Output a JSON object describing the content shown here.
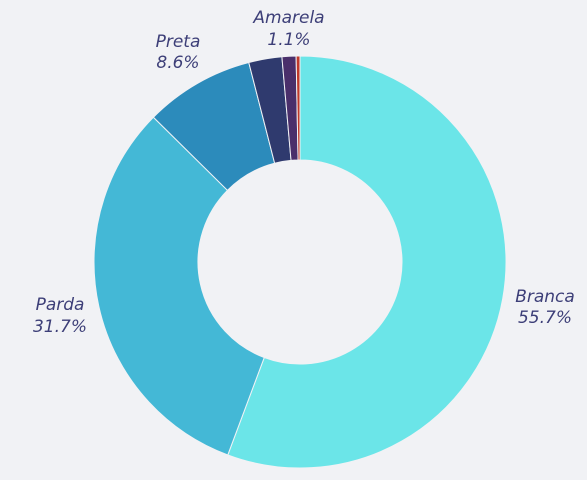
{
  "chart_data": {
    "type": "pie",
    "variant": "donut",
    "slices": [
      {
        "label": "Branca",
        "value": 55.7,
        "display": "55.7%",
        "color": "#6be5e8"
      },
      {
        "label": "Parda",
        "value": 31.7,
        "display": "31.7%",
        "color": "#44b8d6"
      },
      {
        "label": "Preta",
        "value": 8.6,
        "display": "8.6%",
        "color": "#2c8bbb"
      },
      {
        "label": "",
        "value": 2.6,
        "display": "",
        "color": "#2f3a6e"
      },
      {
        "label": "Amarela",
        "value": 1.1,
        "display": "1.1%",
        "color": "#4a2f6b"
      },
      {
        "label": "",
        "value": 0.3,
        "display": "",
        "color": "#c0392b"
      }
    ]
  },
  "colors": {
    "background": "#f1f2f5",
    "label_text": "#3d3f78"
  }
}
